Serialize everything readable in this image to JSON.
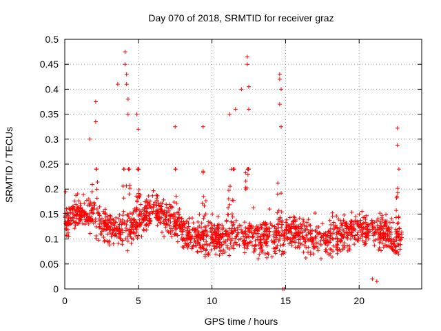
{
  "chart_data": {
    "type": "scatter",
    "title": "Day 070 of 2018, SRMTID for receiver graz",
    "xlabel": "GPS time / hours",
    "ylabel": "SRMTID / TECUs",
    "xlim": [
      0,
      24.25
    ],
    "ylim": [
      0,
      0.5
    ],
    "x_ticks": [
      0,
      5,
      10,
      15,
      20
    ],
    "x_tick_labels": [
      "0",
      "5",
      "10",
      "15",
      "20"
    ],
    "y_ticks": [
      0,
      0.05,
      0.1,
      0.15,
      0.2,
      0.25,
      0.3,
      0.35,
      0.4,
      0.45,
      0.5
    ],
    "y_tick_labels": [
      "0",
      "0.05",
      "0.1",
      "0.15",
      "0.2",
      "0.25",
      "0.3",
      "0.35",
      "0.4",
      "0.45",
      "0.5"
    ],
    "grid": true,
    "marker": "+",
    "color": "#ff0000",
    "x_range_of_data": [
      0,
      22.9
    ],
    "baseline_level": 0.12,
    "typical_spread": [
      0.03,
      0.22
    ],
    "notable_points": [
      {
        "x": 2.1,
        "y": 0.375
      },
      {
        "x": 2.1,
        "y": 0.335
      },
      {
        "x": 1.7,
        "y": 0.3
      },
      {
        "x": 3.6,
        "y": 0.41
      },
      {
        "x": 4.1,
        "y": 0.475
      },
      {
        "x": 4.1,
        "y": 0.45
      },
      {
        "x": 4.2,
        "y": 0.43
      },
      {
        "x": 4.2,
        "y": 0.41
      },
      {
        "x": 4.3,
        "y": 0.38
      },
      {
        "x": 4.3,
        "y": 0.35
      },
      {
        "x": 4.9,
        "y": 0.35
      },
      {
        "x": 5.0,
        "y": 0.32
      },
      {
        "x": 7.5,
        "y": 0.325
      },
      {
        "x": 9.4,
        "y": 0.325
      },
      {
        "x": 11.2,
        "y": 0.35
      },
      {
        "x": 11.6,
        "y": 0.36
      },
      {
        "x": 12.0,
        "y": 0.4
      },
      {
        "x": 12.4,
        "y": 0.465
      },
      {
        "x": 12.4,
        "y": 0.45
      },
      {
        "x": 12.5,
        "y": 0.405
      },
      {
        "x": 12.5,
        "y": 0.36
      },
      {
        "x": 14.6,
        "y": 0.43
      },
      {
        "x": 14.6,
        "y": 0.42
      },
      {
        "x": 14.7,
        "y": 0.4
      },
      {
        "x": 14.6,
        "y": 0.37
      },
      {
        "x": 14.7,
        "y": 0.325
      },
      {
        "x": 22.6,
        "y": 0.322
      },
      {
        "x": 22.6,
        "y": 0.288
      },
      {
        "x": 22.7,
        "y": 0.24
      },
      {
        "x": 14.8,
        "y": 0.0
      },
      {
        "x": 14.9,
        "y": 0.0
      },
      {
        "x": 21.2,
        "y": 0.015
      },
      {
        "x": 20.9,
        "y": 0.02
      }
    ]
  }
}
